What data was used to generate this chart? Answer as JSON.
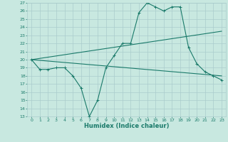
{
  "x": [
    0,
    1,
    2,
    3,
    4,
    5,
    6,
    7,
    8,
    9,
    10,
    11,
    12,
    13,
    14,
    15,
    16,
    17,
    18,
    19,
    20,
    21,
    22,
    23
  ],
  "line_jagged": [
    20,
    18.8,
    18.8,
    19,
    19,
    18,
    16.5,
    13,
    15,
    19,
    20.5,
    22,
    22,
    25.8,
    27,
    26.5,
    26,
    26.5,
    26.5,
    21.5,
    19.5,
    18.5,
    18,
    17.5
  ],
  "line_upper": {
    "x0": 0,
    "y0": 20,
    "x1": 23,
    "y1": 23.5
  },
  "line_lower": {
    "x0": 0,
    "y0": 20,
    "x1": 23,
    "y1": 18.0
  },
  "color": "#1a7a6a",
  "background_color": "#c8e8e0",
  "grid_color": "#aacccc",
  "xlabel": "Humidex (Indice chaleur)",
  "ylim": [
    13,
    27
  ],
  "xlim": [
    -0.5,
    23.5
  ],
  "yticks": [
    13,
    14,
    15,
    16,
    17,
    18,
    19,
    20,
    21,
    22,
    23,
    24,
    25,
    26,
    27
  ],
  "xticks": [
    0,
    1,
    2,
    3,
    4,
    5,
    6,
    7,
    8,
    9,
    10,
    11,
    12,
    13,
    14,
    15,
    16,
    17,
    18,
    19,
    20,
    21,
    22,
    23
  ]
}
